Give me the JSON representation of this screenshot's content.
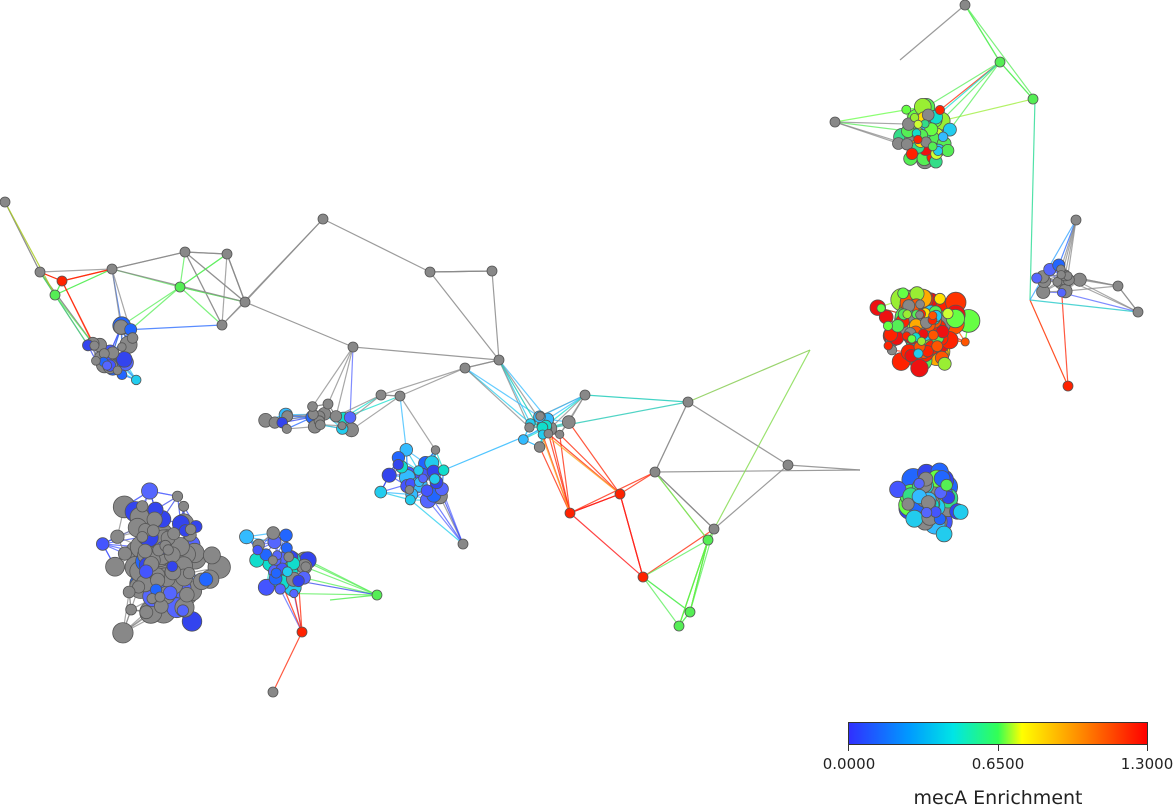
{
  "colorbar": {
    "title": "mecA Enrichment",
    "ticks": [
      "0.0000",
      "0.6500",
      "1.3000"
    ],
    "min": 0.0,
    "max": 1.3,
    "colormap": [
      "#3333ff",
      "#00ccff",
      "#33ff66",
      "#ffff00",
      "#ff8800",
      "#ff0000"
    ]
  },
  "colors": {
    "no_data_node": "#888888",
    "no_data_edge": "#8a8a8a",
    "low": "#4455ff",
    "mid_low": "#22ccee",
    "mid": "#55ee55",
    "mid_high": "#ffdd00",
    "high": "#ff2200"
  }
}
